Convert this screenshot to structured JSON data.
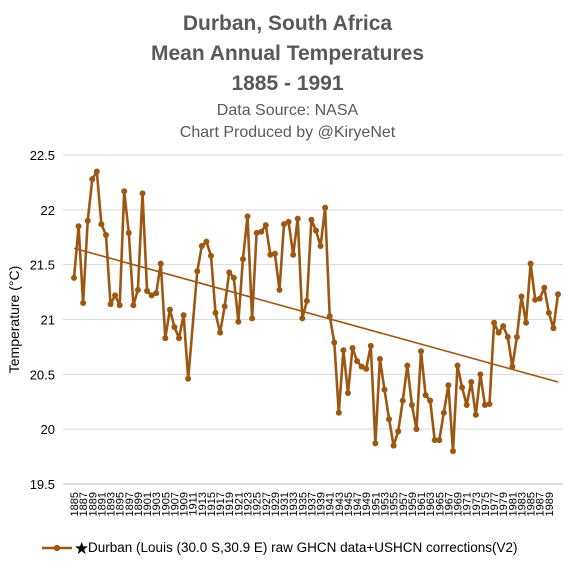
{
  "header": {
    "title_line1": "Durban, South Africa",
    "title_line2": "Mean Annual Temperatures",
    "title_line3": "1885 - 1991",
    "subtitle_line1": "Data Source: NASA",
    "subtitle_line2": "Chart Produced by @KiryeNet"
  },
  "chart_data": {
    "type": "line",
    "title": "Durban, South Africa Mean Annual Temperatures 1885 - 1991",
    "xlabel": "",
    "ylabel": "Temperature (°C)",
    "ylim": [
      19.5,
      22.5
    ],
    "yticks": [
      "19.5",
      "20",
      "20.5",
      "21",
      "21.5",
      "22",
      "22.5"
    ],
    "xlim": [
      1885,
      1991
    ],
    "xticks": [
      1885,
      1887,
      1889,
      1891,
      1893,
      1895,
      1897,
      1899,
      1901,
      1903,
      1905,
      1907,
      1909,
      1911,
      1913,
      1915,
      1917,
      1919,
      1921,
      1923,
      1925,
      1927,
      1929,
      1931,
      1933,
      1935,
      1937,
      1939,
      1941,
      1943,
      1945,
      1947,
      1949,
      1951,
      1953,
      1955,
      1957,
      1959,
      1961,
      1963,
      1965,
      1967,
      1969,
      1971,
      1973,
      1975,
      1977,
      1979,
      1981,
      1983,
      1985,
      1987,
      1989
    ],
    "grid": true,
    "legend_position": "bottom",
    "series": [
      {
        "name": "Durban (Louis (30.0 S,30.9 E) raw GHCN data+USHCN corrections(V2)",
        "color": "#9C5813",
        "marker": "circle",
        "x": [
          1885,
          1886,
          1887,
          1888,
          1889,
          1890,
          1891,
          1892,
          1893,
          1894,
          1895,
          1896,
          1897,
          1898,
          1899,
          1900,
          1901,
          1902,
          1903,
          1904,
          1905,
          1906,
          1907,
          1908,
          1909,
          1910,
          1912,
          1913,
          1914,
          1915,
          1916,
          1917,
          1918,
          1919,
          1920,
          1921,
          1922,
          1923,
          1924,
          1925,
          1926,
          1927,
          1928,
          1929,
          1930,
          1931,
          1932,
          1933,
          1934,
          1935,
          1936,
          1937,
          1938,
          1939,
          1940,
          1941,
          1942,
          1943,
          1944,
          1945,
          1946,
          1947,
          1948,
          1949,
          1950,
          1951,
          1952,
          1953,
          1954,
          1955,
          1956,
          1957,
          1958,
          1959,
          1960,
          1961,
          1962,
          1963,
          1964,
          1965,
          1966,
          1967,
          1968,
          1969,
          1970,
          1971,
          1972,
          1973,
          1974,
          1975,
          1976,
          1977,
          1978,
          1979,
          1980,
          1981,
          1982,
          1983,
          1984,
          1985,
          1986,
          1987,
          1988,
          1989,
          1990,
          1991
        ],
        "y": [
          21.38,
          21.85,
          21.15,
          21.9,
          22.28,
          22.35,
          21.87,
          21.77,
          21.14,
          21.22,
          21.13,
          22.17,
          21.79,
          21.13,
          21.27,
          22.15,
          21.26,
          21.22,
          21.24,
          21.51,
          20.83,
          21.09,
          20.93,
          20.83,
          21.04,
          20.46,
          21.44,
          21.67,
          21.71,
          21.58,
          21.06,
          20.88,
          21.12,
          21.43,
          21.38,
          20.98,
          21.55,
          21.94,
          21.01,
          21.79,
          21.8,
          21.86,
          21.59,
          21.6,
          21.27,
          21.87,
          21.89,
          21.59,
          21.92,
          21.01,
          21.17,
          21.91,
          21.81,
          21.67,
          22.02,
          21.03,
          20.79,
          20.15,
          20.72,
          20.33,
          20.74,
          20.62,
          20.57,
          20.55,
          20.76,
          19.87,
          20.64,
          20.36,
          20.09,
          19.85,
          19.98,
          20.26,
          20.58,
          20.22,
          20.0,
          20.71,
          20.31,
          20.26,
          19.9,
          19.9,
          20.15,
          20.4,
          19.8,
          20.58,
          20.38,
          20.22,
          20.43,
          20.13,
          20.5,
          20.22,
          20.23,
          20.97,
          20.88,
          20.94,
          20.84,
          20.57,
          20.84,
          21.21,
          20.97,
          21.51,
          21.18,
          21.19,
          21.29,
          21.06,
          20.92,
          21.23
        ]
      }
    ],
    "trendline": {
      "x": [
        1885,
        1991
      ],
      "y": [
        21.65,
        20.43
      ],
      "color": "#9C5813"
    }
  }
}
